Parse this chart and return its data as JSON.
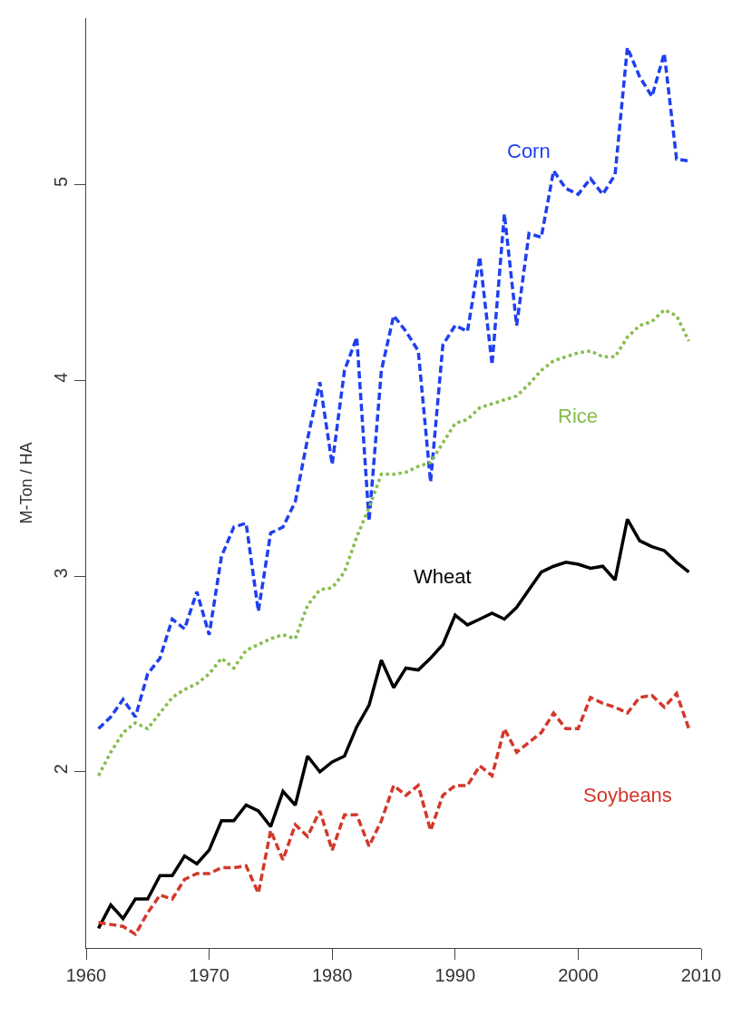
{
  "chart_data": {
    "type": "line",
    "ylabel": "M-Ton / HA",
    "x": [
      1961,
      1962,
      1963,
      1964,
      1965,
      1966,
      1967,
      1968,
      1969,
      1970,
      1971,
      1972,
      1973,
      1974,
      1975,
      1976,
      1977,
      1978,
      1979,
      1980,
      1981,
      1982,
      1983,
      1984,
      1985,
      1986,
      1987,
      1988,
      1989,
      1990,
      1991,
      1992,
      1993,
      1994,
      1995,
      1996,
      1997,
      1998,
      1999,
      2000,
      2001,
      2002,
      2003,
      2004,
      2005,
      2006,
      2007,
      2008,
      2009
    ],
    "xlim": [
      1960,
      2010
    ],
    "xticks": [
      1960,
      1970,
      1980,
      1990,
      2000,
      2010
    ],
    "ylim": [
      1.1,
      5.85
    ],
    "yticks": [
      2,
      3,
      4,
      5
    ],
    "legend": false,
    "series": [
      {
        "name": "Corn",
        "color": "#1f3ff0",
        "line_style": "dashed",
        "values": [
          2.22,
          2.28,
          2.37,
          2.28,
          2.5,
          2.58,
          2.78,
          2.73,
          2.92,
          2.7,
          3.1,
          3.25,
          3.27,
          2.82,
          3.22,
          3.25,
          3.38,
          3.7,
          3.99,
          3.57,
          4.05,
          4.22,
          3.28,
          4.05,
          4.33,
          4.25,
          4.15,
          3.48,
          4.18,
          4.28,
          4.25,
          4.63,
          4.08,
          4.85,
          4.28,
          4.75,
          4.73,
          5.07,
          4.98,
          4.95,
          5.03,
          4.95,
          5.05,
          5.7,
          5.55,
          5.45,
          5.67,
          5.13,
          5.12
        ]
      },
      {
        "name": "Rice",
        "color": "#86bd4c",
        "line_style": "dotted",
        "values": [
          1.98,
          2.1,
          2.2,
          2.25,
          2.22,
          2.3,
          2.38,
          2.42,
          2.45,
          2.5,
          2.58,
          2.53,
          2.62,
          2.65,
          2.68,
          2.7,
          2.68,
          2.85,
          2.93,
          2.94,
          3.02,
          3.2,
          3.35,
          3.52,
          3.52,
          3.53,
          3.56,
          3.58,
          3.68,
          3.78,
          3.8,
          3.86,
          3.88,
          3.9,
          3.92,
          3.98,
          4.05,
          4.1,
          4.12,
          4.14,
          4.15,
          4.12,
          4.12,
          4.22,
          4.28,
          4.3,
          4.36,
          4.33,
          4.2
        ]
      },
      {
        "name": "Wheat",
        "color": "#000000",
        "line_style": "solid",
        "values": [
          1.2,
          1.32,
          1.25,
          1.35,
          1.35,
          1.47,
          1.47,
          1.57,
          1.53,
          1.6,
          1.75,
          1.75,
          1.83,
          1.8,
          1.72,
          1.9,
          1.83,
          2.08,
          2.0,
          2.05,
          2.08,
          2.23,
          2.34,
          2.57,
          2.43,
          2.53,
          2.52,
          2.58,
          2.65,
          2.8,
          2.75,
          2.78,
          2.81,
          2.78,
          2.84,
          2.93,
          3.02,
          3.05,
          3.07,
          3.06,
          3.04,
          3.05,
          2.98,
          3.29,
          3.18,
          3.15,
          3.13,
          3.07,
          3.02
        ]
      },
      {
        "name": "Soybeans",
        "color": "#d2382a",
        "line_style": "dashed",
        "values": [
          1.23,
          1.22,
          1.21,
          1.17,
          1.28,
          1.37,
          1.35,
          1.45,
          1.48,
          1.48,
          1.51,
          1.51,
          1.52,
          1.38,
          1.7,
          1.55,
          1.73,
          1.67,
          1.8,
          1.6,
          1.78,
          1.78,
          1.62,
          1.75,
          1.93,
          1.88,
          1.93,
          1.7,
          1.88,
          1.93,
          1.93,
          2.03,
          1.98,
          2.22,
          2.1,
          2.15,
          2.2,
          2.3,
          2.22,
          2.22,
          2.38,
          2.35,
          2.33,
          2.3,
          2.38,
          2.39,
          2.33,
          2.4,
          2.22
        ]
      }
    ]
  }
}
